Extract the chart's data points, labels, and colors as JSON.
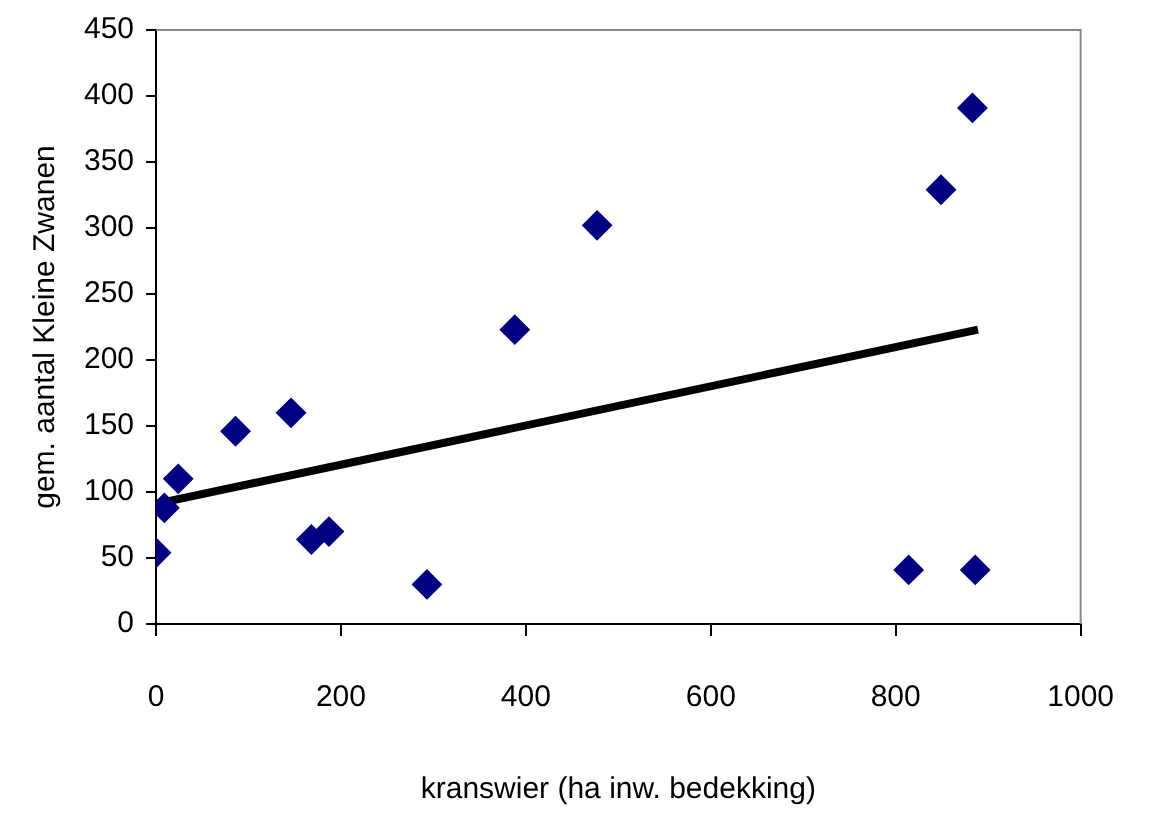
{
  "chart_data": {
    "type": "scatter",
    "xlabel": "kranswier (ha inw. bedekking)",
    "ylabel": "gem. aantal Kleine Zwanen",
    "xlim": [
      0,
      1000
    ],
    "xticks": [
      0,
      200,
      400,
      600,
      800,
      1000
    ],
    "ylim": [
      0,
      450
    ],
    "yticks": [
      0,
      50,
      100,
      150,
      200,
      250,
      300,
      350,
      400,
      450
    ],
    "grid": false,
    "legend": false,
    "marker": "diamond",
    "series": [
      {
        "color": "#000080",
        "x": [
          0,
          9,
          24,
          86,
          146,
          168,
          187,
          293,
          388,
          477,
          814,
          849,
          883,
          886
        ],
        "values": [
          54,
          88,
          110,
          146,
          160,
          64,
          70,
          30,
          223,
          302,
          41,
          329,
          391,
          41
        ]
      },
      {
        "type": "line",
        "color": "#000000",
        "marker": "none",
        "line_style": "solid",
        "x": [
          0,
          889
        ],
        "values": [
          91,
          223
        ]
      }
    ]
  }
}
